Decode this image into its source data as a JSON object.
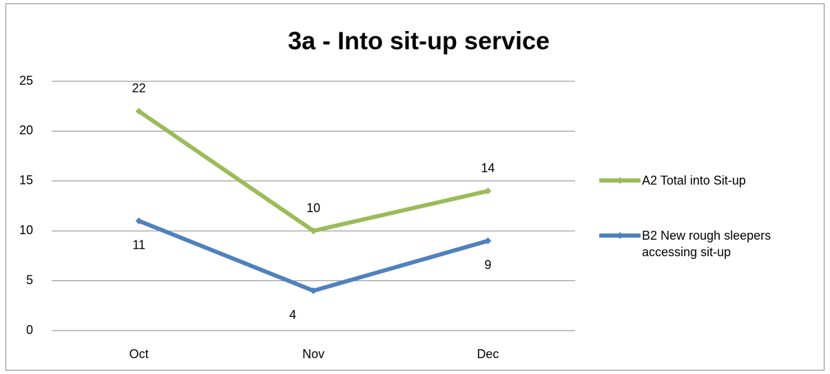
{
  "chart_data": {
    "type": "line",
    "title": "3a - Into sit-up service",
    "categories": [
      "Oct",
      "Nov",
      "Dec"
    ],
    "series": [
      {
        "name": "A2 Total into Sit-up",
        "color": "#9bbb59",
        "values": [
          22,
          10,
          14
        ]
      },
      {
        "name": "B2 New rough sleepers accessing sit-up",
        "color": "#4f81bd",
        "values": [
          11,
          4,
          9
        ]
      }
    ],
    "ylim": [
      0,
      25
    ],
    "yticks": [
      0,
      5,
      10,
      15,
      20,
      25
    ],
    "grid": true,
    "legend": "right"
  }
}
